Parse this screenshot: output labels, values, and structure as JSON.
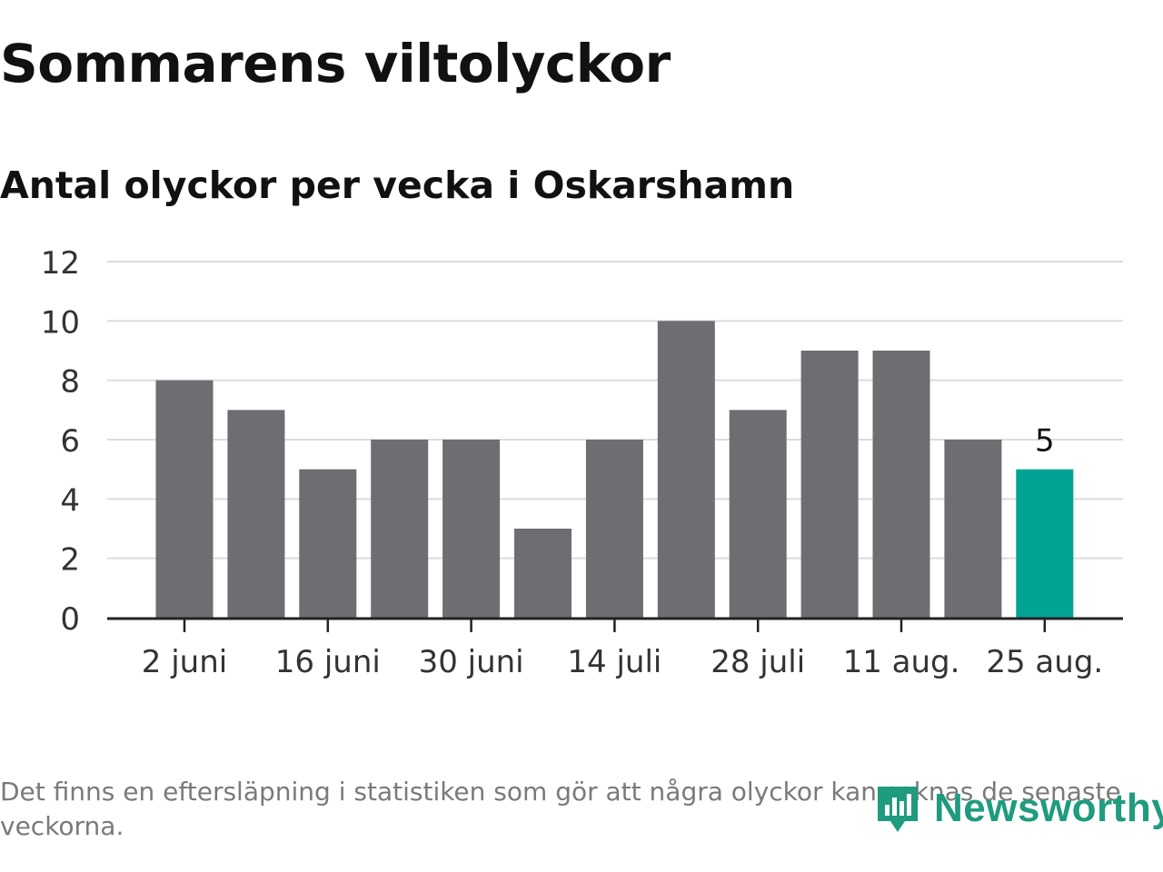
{
  "title": "Sommarens viltolyckor",
  "subtitle": "Antal olyckor per vecka i Oskarshamn",
  "note": "Det finns en eftersläpning i statistiken som gör att några olyckor kan saknas de senaste veckorna.",
  "logo": {
    "text": "Newsworthy",
    "icon": "bar-chart-location-icon",
    "color": "#1f9b7f"
  },
  "chart_data": {
    "type": "bar",
    "categories": [
      "2 juni",
      "9 juni",
      "16 juni",
      "23 juni",
      "30 juni",
      "7 juli",
      "14 juli",
      "21 juli",
      "28 juli",
      "4 aug.",
      "11 aug.",
      "18 aug.",
      "25 aug."
    ],
    "values": [
      8,
      7,
      5,
      6,
      6,
      3,
      6,
      10,
      7,
      9,
      9,
      6,
      5
    ],
    "x_tick_labels": [
      "2 juni",
      "16 juni",
      "30 juni",
      "14 juli",
      "28 juli",
      "11 aug.",
      "25 aug."
    ],
    "y_ticks": [
      0,
      2,
      4,
      6,
      8,
      10,
      12
    ],
    "ylim": [
      0,
      12
    ],
    "grid": true,
    "bar_color": "#6e6d72",
    "highlight_color": "#00a394",
    "highlight_index": 12,
    "data_labels": [
      {
        "index": 12,
        "text": "5"
      }
    ],
    "xlabel": "",
    "ylabel": ""
  }
}
